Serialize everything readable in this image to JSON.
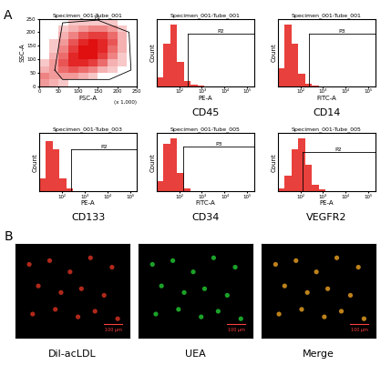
{
  "panel_labels": [
    "A",
    "B"
  ],
  "chart_data": [
    {
      "type": "density",
      "title": "Specimen_001-Tube_001",
      "xlabel": "FSC-A",
      "ylabel": "SSC-A",
      "xlabel_note": "(x 1,000)",
      "xlim": [
        0,
        250
      ],
      "ylim": [
        0,
        250
      ],
      "xticks": [
        0,
        50,
        100,
        150,
        200,
        250
      ],
      "yticks": [
        0,
        50,
        100,
        150,
        200,
        250
      ],
      "color": "#e01010",
      "x_bins": [
        0,
        25,
        50,
        75,
        100,
        125,
        150,
        175,
        200,
        225,
        250
      ],
      "y_bins": [
        0,
        25,
        50,
        75,
        100,
        125,
        150,
        175,
        200,
        225,
        250
      ],
      "counts": [
        [
          3,
          2,
          1,
          0,
          0,
          0,
          0,
          0,
          0,
          0
        ],
        [
          4,
          3,
          3,
          3,
          2,
          1,
          0,
          0,
          0,
          0
        ],
        [
          2,
          3,
          5,
          6,
          5,
          4,
          2,
          1,
          0,
          0
        ],
        [
          1,
          3,
          6,
          8,
          8,
          7,
          5,
          2,
          1,
          0
        ],
        [
          0,
          2,
          5,
          8,
          9,
          9,
          7,
          4,
          1,
          0
        ],
        [
          0,
          1,
          4,
          7,
          9,
          9,
          8,
          5,
          2,
          0
        ],
        [
          0,
          1,
          3,
          6,
          8,
          9,
          8,
          6,
          2,
          0
        ],
        [
          0,
          0,
          2,
          4,
          6,
          7,
          7,
          5,
          2,
          0
        ],
        [
          0,
          0,
          1,
          2,
          3,
          4,
          4,
          3,
          1,
          0
        ],
        [
          0,
          0,
          0,
          1,
          1,
          1,
          1,
          1,
          0,
          0
        ]
      ],
      "gate": {
        "name": "P1",
        "vertices": [
          [
            40,
            60
          ],
          [
            60,
            235
          ],
          [
            150,
            245
          ],
          [
            230,
            200
          ],
          [
            235,
            60
          ],
          [
            180,
            25
          ],
          [
            60,
            25
          ]
        ]
      }
    },
    {
      "type": "histogram",
      "title": "Specimen_001-Tube_001",
      "xlabel": "PE-A",
      "ylabel": "Count",
      "caption": "CD45",
      "log": "x",
      "xlim": [
        10,
        200000
      ],
      "ylim": [
        0,
        110
      ],
      "tick_labels": "x",
      "color": "#e8403c",
      "xticks": [
        {
          "value": 100,
          "label": "10²"
        },
        {
          "value": 1000,
          "label": "10³"
        },
        {
          "value": 10000,
          "label": "10⁴"
        },
        {
          "value": 100000,
          "label": "10⁵"
        }
      ],
      "bins": [
        10,
        20,
        40,
        80,
        160,
        320,
        640,
        1280,
        2560,
        5120,
        10240,
        100000
      ],
      "counts": [
        15,
        70,
        100,
        40,
        8,
        2,
        1,
        0,
        0,
        0,
        0
      ],
      "gate": {
        "name": "P2",
        "x_start": 250,
        "y": 85
      }
    },
    {
      "type": "histogram",
      "title": "Specimen_001-Tube_001",
      "xlabel": "FITC-A",
      "ylabel": "Count",
      "caption": "CD14",
      "log": "x",
      "xlim": [
        10,
        200000
      ],
      "ylim": [
        0,
        110
      ],
      "tick_labels": "x",
      "color": "#e8403c",
      "xticks": [
        {
          "value": 100,
          "label": "10²"
        },
        {
          "value": 1000,
          "label": "10³"
        },
        {
          "value": 10000,
          "label": "10⁴"
        },
        {
          "value": 100000,
          "label": "10⁵"
        }
      ],
      "bins": [
        10,
        20,
        40,
        80,
        160,
        320,
        640,
        1280,
        2560,
        5120,
        10240,
        100000
      ],
      "counts": [
        30,
        100,
        70,
        20,
        4,
        1,
        0,
        0,
        0,
        0,
        0
      ],
      "gate": {
        "name": "P3",
        "x_start": 250,
        "y": 85
      }
    },
    {
      "type": "histogram",
      "title": "Specimen_001-Tube_003",
      "xlabel": "PE-A",
      "ylabel": "Count",
      "caption": "CD133",
      "log": "x",
      "xlim": [
        10,
        200000
      ],
      "ylim": [
        0,
        110
      ],
      "tick_labels": "x",
      "color": "#e8403c",
      "xticks": [
        {
          "value": 100,
          "label": "10²"
        },
        {
          "value": 1000,
          "label": "10³"
        },
        {
          "value": 10000,
          "label": "10⁴"
        },
        {
          "value": 100000,
          "label": "10⁵"
        }
      ],
      "bins": [
        10,
        20,
        40,
        80,
        160,
        320,
        640,
        1280,
        2560,
        5120,
        10240,
        100000
      ],
      "counts": [
        25,
        95,
        80,
        25,
        5,
        1,
        0,
        0,
        0,
        0,
        0
      ],
      "gate": {
        "name": "P2",
        "x_start": 250,
        "y": 80
      }
    },
    {
      "type": "histogram",
      "title": "Specimen_001-Tube_005",
      "xlabel": "FITC-A",
      "ylabel": "Count",
      "caption": "CD34",
      "log": "x",
      "xlim": [
        10,
        200000
      ],
      "ylim": [
        0,
        110
      ],
      "tick_labels": "x",
      "color": "#e8403c",
      "xticks": [
        {
          "value": 100,
          "label": "10²"
        },
        {
          "value": 1000,
          "label": "10³"
        },
        {
          "value": 10000,
          "label": "10⁴"
        },
        {
          "value": 100000,
          "label": "10⁵"
        }
      ],
      "bins": [
        10,
        20,
        40,
        80,
        160,
        320,
        640,
        1280,
        2560,
        5120,
        10240,
        100000
      ],
      "counts": [
        20,
        90,
        100,
        35,
        6,
        1,
        0,
        0,
        0,
        0,
        0
      ],
      "gate": {
        "name": "P3",
        "x_start": 150,
        "y": 85
      }
    },
    {
      "type": "histogram",
      "title": "Specimen_001-Tube_005",
      "xlabel": "PE-A",
      "ylabel": "Count",
      "caption": "VEGFR2",
      "log": "x",
      "xlim": [
        10,
        200000
      ],
      "ylim": [
        0,
        110
      ],
      "tick_labels": "x",
      "color": "#e8403c",
      "xticks": [
        {
          "value": 100,
          "label": "10²"
        },
        {
          "value": 1000,
          "label": "10³"
        },
        {
          "value": 10000,
          "label": "10⁴"
        },
        {
          "value": 100000,
          "label": "10⁵"
        }
      ],
      "bins": [
        10,
        20,
        40,
        80,
        160,
        320,
        640,
        1280,
        2560,
        5120,
        10240,
        100000
      ],
      "counts": [
        5,
        30,
        80,
        100,
        50,
        12,
        3,
        1,
        0,
        0,
        0
      ],
      "gate": {
        "name": "P2",
        "x_start": 120,
        "y": 75
      }
    },
    {
      "type": "image",
      "caption": "Dil-acLDL",
      "scale_bar": "100 μm",
      "color": "#d03020",
      "xlim": [
        0,
        100
      ],
      "ylim": [
        0,
        100
      ],
      "tick_labels": false,
      "cells": [
        [
          12,
          78
        ],
        [
          30,
          82
        ],
        [
          48,
          70
        ],
        [
          66,
          85
        ],
        [
          85,
          75
        ],
        [
          20,
          55
        ],
        [
          40,
          48
        ],
        [
          58,
          52
        ],
        [
          78,
          45
        ],
        [
          15,
          25
        ],
        [
          35,
          30
        ],
        [
          55,
          22
        ],
        [
          70,
          28
        ],
        [
          90,
          20
        ]
      ]
    },
    {
      "type": "image",
      "caption": "UEA",
      "scale_bar": "100 μm",
      "color": "#20c030",
      "xlim": [
        0,
        100
      ],
      "ylim": [
        0,
        100
      ],
      "tick_labels": false,
      "cells": [
        [
          12,
          78
        ],
        [
          30,
          82
        ],
        [
          48,
          70
        ],
        [
          66,
          85
        ],
        [
          85,
          75
        ],
        [
          20,
          55
        ],
        [
          40,
          48
        ],
        [
          58,
          52
        ],
        [
          78,
          45
        ],
        [
          15,
          25
        ],
        [
          35,
          30
        ],
        [
          55,
          22
        ],
        [
          70,
          28
        ],
        [
          90,
          20
        ]
      ]
    },
    {
      "type": "image",
      "caption": "Merge",
      "scale_bar": "100 μm",
      "color": "#e09a20",
      "xlim": [
        0,
        100
      ],
      "ylim": [
        0,
        100
      ],
      "tick_labels": false,
      "cells": [
        [
          12,
          78
        ],
        [
          30,
          82
        ],
        [
          48,
          70
        ],
        [
          66,
          85
        ],
        [
          85,
          75
        ],
        [
          20,
          55
        ],
        [
          40,
          48
        ],
        [
          58,
          52
        ],
        [
          78,
          45
        ],
        [
          15,
          25
        ],
        [
          35,
          30
        ],
        [
          55,
          22
        ],
        [
          70,
          28
        ],
        [
          90,
          20
        ]
      ]
    }
  ]
}
